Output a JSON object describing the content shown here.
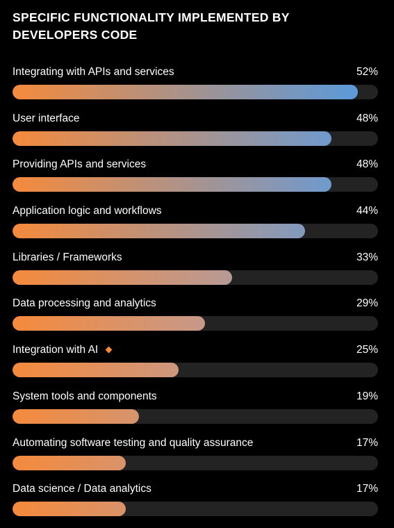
{
  "chart_data": {
    "type": "bar",
    "orientation": "horizontal",
    "title": "SPECIFIC FUNCTIONALITY IMPLEMENTED BY DEVELOPERS CODE",
    "xlim": [
      0,
      55
    ],
    "bars": [
      {
        "category": "Integrating with APIs and services",
        "value": 52,
        "value_label": "52%"
      },
      {
        "category": "User interface",
        "value": 48,
        "value_label": "48%"
      },
      {
        "category": "Providing APIs and services",
        "value": 48,
        "value_label": "48%"
      },
      {
        "category": "Application logic and workflows",
        "value": 44,
        "value_label": "44%"
      },
      {
        "category": "Libraries / Frameworks",
        "value": 33,
        "value_label": "33%"
      },
      {
        "category": "Data processing and analytics",
        "value": 29,
        "value_label": "29%"
      },
      {
        "category": "Integration with AI",
        "value": 25,
        "value_label": "25%",
        "badge": "orange-diamond-icon"
      },
      {
        "category": "System tools and components",
        "value": 19,
        "value_label": "19%"
      },
      {
        "category": "Automating software testing and quality assurance",
        "value": 17,
        "value_label": "17%"
      },
      {
        "category": "Data science / Data analytics",
        "value": 17,
        "value_label": "17%"
      }
    ]
  },
  "colors": {
    "background": "#000000",
    "track": "#232323",
    "gradient_start": "#f58a3c",
    "gradient_mid": "#c49a8c",
    "gradient_end": "#4d9ae6",
    "badge": "#f58a3c",
    "text": "#ffffff"
  }
}
